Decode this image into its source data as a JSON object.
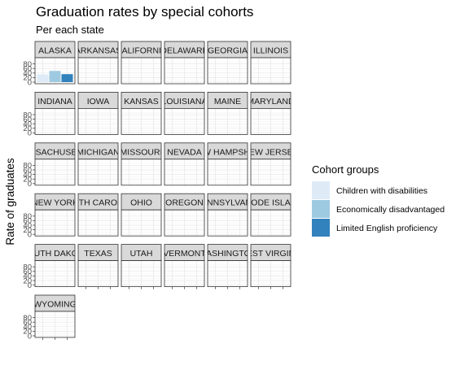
{
  "chart_data": {
    "type": "bar",
    "title": "Graduation rates by special cohorts",
    "subtitle": "Per each state",
    "xlabel": "",
    "ylabel": "Rate of graduates",
    "ylim": [
      0,
      100
    ],
    "yticks": [
      0,
      20,
      40,
      60,
      80
    ],
    "grid": true,
    "legend_position": "right",
    "legend_title": "Cohort groups",
    "series": [
      {
        "name": "Children with disabilities",
        "color": "#deebf7"
      },
      {
        "name": "Economically disadvantaged",
        "color": "#9ecae1"
      },
      {
        "name": "Limited English proficiency",
        "color": "#3182bd"
      }
    ],
    "facets": [
      {
        "label": "ALASKA",
        "values": [
          34,
          49,
          35
        ]
      },
      {
        "label": "ARKANSAS",
        "values": [
          null,
          null,
          null
        ]
      },
      {
        "label": "CALIFORNIA",
        "values": [
          null,
          null,
          null
        ]
      },
      {
        "label": "DELAWARE",
        "values": [
          null,
          null,
          null
        ]
      },
      {
        "label": "GEORGIA",
        "values": [
          null,
          null,
          null
        ]
      },
      {
        "label": "ILLINOIS",
        "values": [
          null,
          null,
          null
        ]
      },
      {
        "label": "INDIANA",
        "values": [
          null,
          null,
          null
        ]
      },
      {
        "label": "IOWA",
        "values": [
          null,
          null,
          null
        ]
      },
      {
        "label": "KANSAS",
        "values": [
          null,
          null,
          null
        ]
      },
      {
        "label": "LOUISIANA",
        "values": [
          null,
          null,
          null
        ]
      },
      {
        "label": "MAINE",
        "values": [
          null,
          null,
          null
        ]
      },
      {
        "label": "MARYLAND",
        "values": [
          null,
          null,
          null
        ]
      },
      {
        "label": "MASSACHUSETTS",
        "values": [
          null,
          null,
          null
        ]
      },
      {
        "label": "MICHIGAN",
        "values": [
          null,
          null,
          null
        ]
      },
      {
        "label": "MISSOURI",
        "values": [
          null,
          null,
          null
        ]
      },
      {
        "label": "NEVADA",
        "values": [
          null,
          null,
          null
        ]
      },
      {
        "label": "NEW HAMPSHIRE",
        "values": [
          null,
          null,
          null
        ]
      },
      {
        "label": "NEW JERSEY",
        "values": [
          null,
          null,
          null
        ]
      },
      {
        "label": "NEW YORK",
        "values": [
          null,
          null,
          null
        ]
      },
      {
        "label": "NORTH CAROLINA",
        "values": [
          null,
          null,
          null
        ]
      },
      {
        "label": "OHIO",
        "values": [
          null,
          null,
          null
        ]
      },
      {
        "label": "OREGON",
        "values": [
          null,
          null,
          null
        ]
      },
      {
        "label": "PENNSYLVANIA",
        "values": [
          null,
          null,
          null
        ]
      },
      {
        "label": "RHODE ISLAND",
        "values": [
          null,
          null,
          null
        ]
      },
      {
        "label": "SOUTH DAKOTA",
        "values": [
          null,
          null,
          null
        ]
      },
      {
        "label": "TEXAS",
        "values": [
          null,
          null,
          null
        ]
      },
      {
        "label": "UTAH",
        "values": [
          null,
          null,
          null
        ]
      },
      {
        "label": "VERMONT",
        "values": [
          null,
          null,
          null
        ]
      },
      {
        "label": "WASHINGTON",
        "values": [
          null,
          null,
          null
        ]
      },
      {
        "label": "WEST VIRGINIA",
        "values": [
          null,
          null,
          null
        ]
      },
      {
        "label": "WYOMING",
        "values": [
          null,
          null,
          null
        ]
      }
    ]
  }
}
